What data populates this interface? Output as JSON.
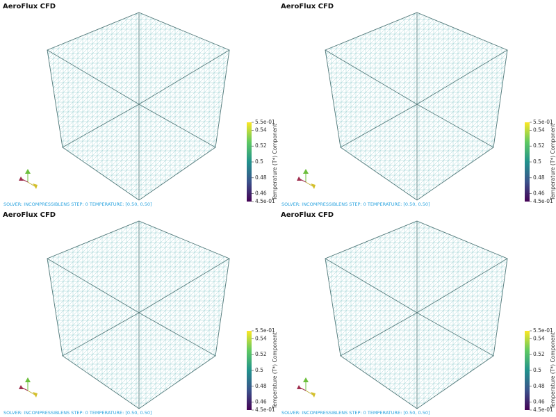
{
  "panels": [
    {
      "title": "AeroFlux CFD",
      "status": "SOLVER: INCOMPRESSIBLENS STEP: 0 TEMPERATURE: [0.50, 0.50]",
      "colorbar": {
        "label": "Temperature (T*) Component",
        "ticks": [
          {
            "value": 0.55,
            "label": "5.5e-01"
          },
          0.54,
          0.52,
          0.5,
          0.48,
          0.46,
          {
            "value": 0.45,
            "label": "4.5e-01"
          }
        ]
      }
    },
    {
      "title": "AeroFlux CFD",
      "status": "SOLVER: INCOMPRESSIBLENS STEP: 0 TEMPERATURE: [0.50, 0.50]",
      "colorbar": {
        "label": "Temperature (T*) Component",
        "ticks": [
          {
            "value": 0.55,
            "label": "5.5e-01"
          },
          0.54,
          0.52,
          0.5,
          0.48,
          0.46,
          {
            "value": 0.45,
            "label": "4.5e-01"
          }
        ]
      }
    },
    {
      "title": "AeroFlux CFD",
      "status": "SOLVER: INCOMPRESSIBLENS STEP: 0 TEMPERATURE: [0.50, 0.50]",
      "colorbar": {
        "label": "Temperature (T*) Component",
        "ticks": [
          {
            "value": 0.55,
            "label": "5.5e-01"
          },
          0.54,
          0.52,
          0.5,
          0.48,
          0.46,
          {
            "value": 0.45,
            "label": "4.5e-01"
          }
        ]
      }
    },
    {
      "title": "AeroFlux CFD",
      "status": "SOLVER: INCOMPRESSIBLENS STEP: 0 TEMPERATURE: [0.50, 0.50]",
      "colorbar": {
        "label": "Temperature (T*) Component",
        "ticks": [
          {
            "value": 0.55,
            "label": "5.5e-01"
          },
          0.54,
          0.52,
          0.5,
          0.48,
          0.46,
          {
            "value": 0.45,
            "label": "4.5e-01"
          }
        ]
      }
    }
  ]
}
